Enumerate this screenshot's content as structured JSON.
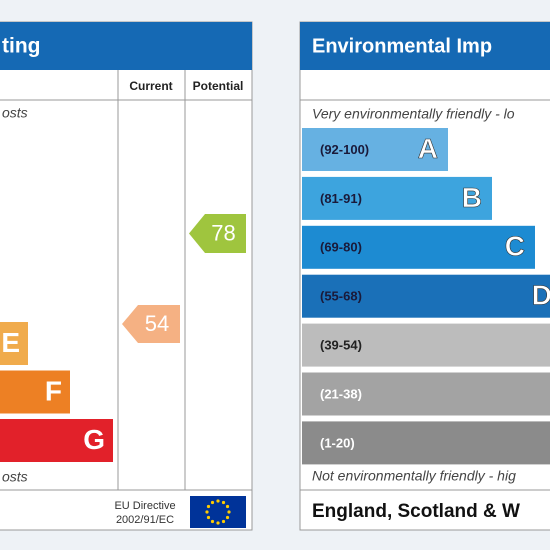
{
  "energy": {
    "title": "ting",
    "columns": [
      "Current",
      "Potential"
    ],
    "top_note": "osts",
    "bottom_note": "osts",
    "bands": [
      {
        "letter": "E",
        "color": "#f0ab4c",
        "width": 28
      },
      {
        "letter": "F",
        "color": "#ed8024",
        "width": 70
      },
      {
        "letter": "G",
        "color": "#e2212a",
        "width": 113
      }
    ],
    "current": {
      "value": 54,
      "color": "#f5b183"
    },
    "potential": {
      "value": 78,
      "color": "#9fc53e"
    },
    "directive": [
      "EU Directive",
      "2002/91/EC"
    ]
  },
  "environmental": {
    "title": "Environmental Imp",
    "top_note": "Very environmentally friendly - lo",
    "bottom_note": "Not environmentally friendly - hig",
    "bands": [
      {
        "range": "(92-100)",
        "letter": "A",
        "color": "#66b1e2",
        "width": 146
      },
      {
        "range": "(81-91)",
        "letter": "B",
        "color": "#3da4de",
        "width": 190
      },
      {
        "range": "(69-80)",
        "letter": "C",
        "color": "#1d8bd2",
        "width": 233
      },
      {
        "range": "(55-68)",
        "letter": "D",
        "color": "#1a70b8",
        "width": 260
      },
      {
        "range": "(39-54)",
        "letter": null,
        "color": "#bcbcbc",
        "width": 260
      },
      {
        "range": "(21-38)",
        "letter": null,
        "color": "#a3a3a3",
        "width": 260
      },
      {
        "range": "(1-20)",
        "letter": null,
        "color": "#8b8b8b",
        "width": 260
      }
    ],
    "footer": "England, Scotland & W"
  }
}
